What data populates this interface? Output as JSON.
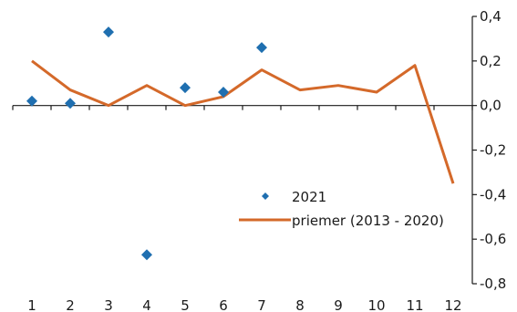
{
  "chart_data": {
    "type": "line",
    "x": [
      1,
      2,
      3,
      4,
      5,
      6,
      7,
      8,
      9,
      10,
      11,
      12
    ],
    "series": [
      {
        "name": "2021",
        "mark": "diamond",
        "color": "#1f6fb0",
        "x": [
          1,
          2,
          3,
          4,
          5,
          6,
          7
        ],
        "values": [
          0.02,
          0.01,
          0.33,
          -0.67,
          0.08,
          0.06,
          0.26
        ]
      },
      {
        "name": "priemer (2013 - 2020)",
        "mark": "line",
        "color": "#d4692a",
        "x": [
          1,
          2,
          3,
          4,
          5,
          6,
          7,
          8,
          9,
          10,
          11,
          12
        ],
        "values": [
          0.2,
          0.07,
          0.0,
          0.09,
          0.0,
          0.04,
          0.16,
          0.07,
          0.09,
          0.06,
          0.18,
          -0.35
        ]
      }
    ],
    "x_ticks": [
      "1",
      "2",
      "3",
      "4",
      "5",
      "6",
      "7",
      "8",
      "9",
      "10",
      "11",
      "12"
    ],
    "y_ticks": [
      "0,4",
      "0,2",
      "0,0",
      "-0,2",
      "-0,4",
      "-0,6",
      "-0,8"
    ],
    "y_tick_values": [
      0.4,
      0.2,
      0.0,
      -0.2,
      -0.4,
      -0.6,
      -0.8
    ],
    "ylim": [
      -0.8,
      0.4
    ],
    "xlim": [
      0.5,
      12.5
    ],
    "y_axis_side": "right",
    "grid": false,
    "legend_position": "lower-right"
  }
}
